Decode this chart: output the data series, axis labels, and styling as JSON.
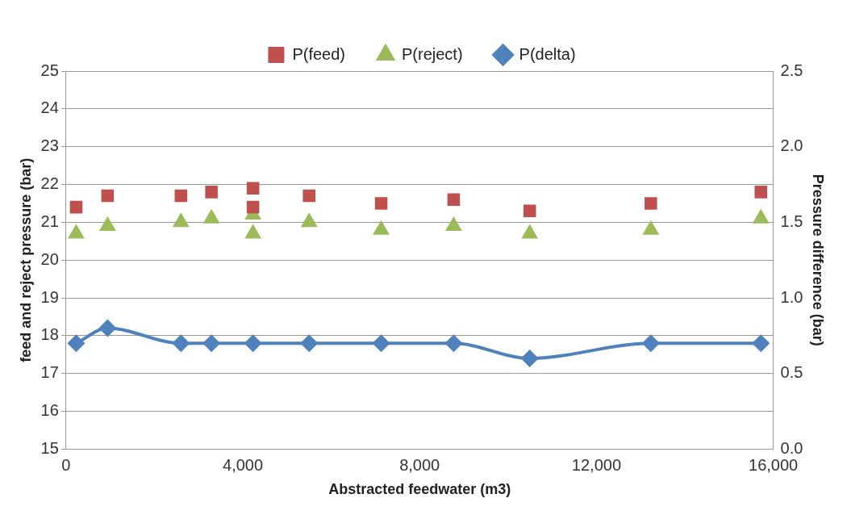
{
  "chart_data": {
    "type": "scatter",
    "xlabel": "Abstracted feedwater (m3)",
    "ylabel": "feed and reject pressure (bar)",
    "y2label": "Pressure difference (bar)",
    "xlim": [
      0,
      16000
    ],
    "xticks": [
      0,
      {
        "value": 4000,
        "label": "4,000"
      },
      {
        "value": 8000,
        "label": "8,000"
      },
      {
        "value": 12000,
        "label": "12,000"
      },
      {
        "value": 16000,
        "label": "16,000"
      }
    ],
    "ylim": [
      15,
      25
    ],
    "yticks": [
      15,
      16,
      17,
      18,
      19,
      20,
      21,
      22,
      23,
      24,
      25
    ],
    "y2lim": [
      0,
      2.5
    ],
    "y2ticks": [
      {
        "value": 0,
        "label": "0.0"
      },
      0.5,
      {
        "value": 1,
        "label": "1.0"
      },
      1.5,
      {
        "value": 2,
        "label": "2.0"
      },
      2.5
    ],
    "grid": "y",
    "legend": "top",
    "series": [
      {
        "name": "P(feed)",
        "type": "scatter",
        "marker": "square",
        "color": "#c0504d",
        "x": [
          230,
          940,
          2600,
          3290,
          4230,
          4230,
          5500,
          7130,
          8770,
          10490,
          13230,
          15720
        ],
        "values": [
          21.4,
          21.7,
          21.7,
          21.8,
          21.9,
          21.4,
          21.7,
          21.5,
          21.6,
          21.3,
          21.5,
          21.8
        ]
      },
      {
        "name": "P(reject)",
        "type": "scatter",
        "marker": "triangle",
        "color": "#9bbb59",
        "x": [
          230,
          940,
          2600,
          3290,
          4230,
          4230,
          5500,
          7130,
          8770,
          10490,
          13230,
          15720
        ],
        "values": [
          20.7,
          20.9,
          21.0,
          21.1,
          21.2,
          20.7,
          21.0,
          20.8,
          20.9,
          20.7,
          20.8,
          21.1
        ]
      },
      {
        "name": "P(delta)",
        "type": "line",
        "marker": "diamond",
        "axis": "y2",
        "color": "#4f81bd",
        "x": [
          230,
          940,
          2600,
          3290,
          4230,
          5500,
          7130,
          8770,
          10490,
          13230,
          15720
        ],
        "values": [
          0.7,
          0.8,
          0.7,
          0.7,
          0.7,
          0.7,
          0.7,
          0.7,
          0.6,
          0.7,
          0.7
        ]
      }
    ]
  }
}
